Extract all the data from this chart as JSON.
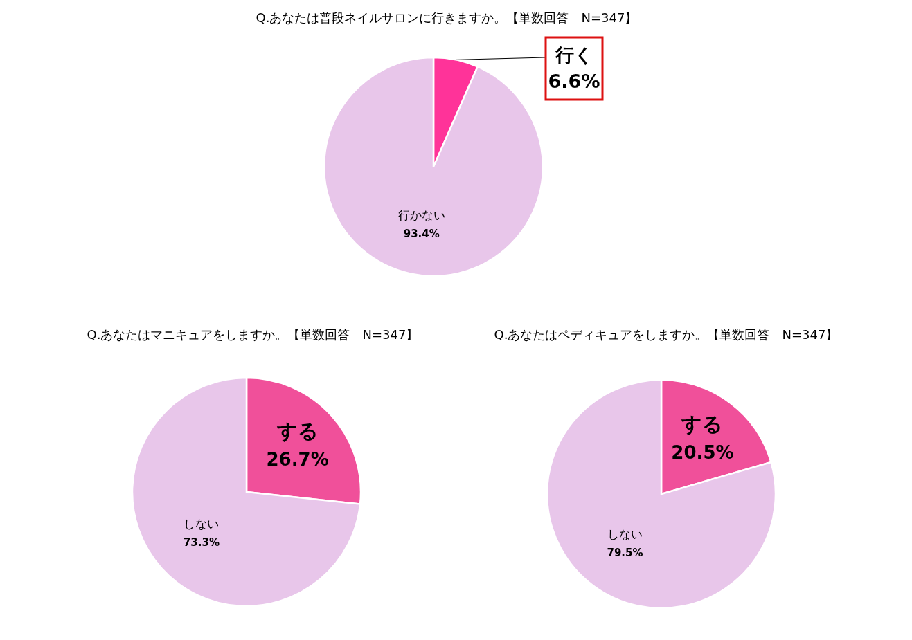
{
  "chart_data": [
    {
      "type": "pie",
      "title": "Q.あなたは普段ネイルサロンに行きますか。【単数回答　N=347】",
      "categories": [
        "行く",
        "行かない"
      ],
      "values": [
        6.6,
        93.4
      ],
      "colors": [
        "#ff3399",
        "#e8c6ea"
      ],
      "value_labels": [
        "6.6%",
        "93.4%"
      ]
    },
    {
      "type": "pie",
      "title": "Q.あなたはマニキュアをしますか。【単数回答　N=347】",
      "categories": [
        "する",
        "しない"
      ],
      "values": [
        26.7,
        73.3
      ],
      "colors": [
        "#f0509a",
        "#e8c6ea"
      ],
      "value_labels": [
        "26.7%",
        "73.3%"
      ]
    },
    {
      "type": "pie",
      "title": "Q.あなたはペディキュアをしますか。【単数回答　N=347】",
      "categories": [
        "する",
        "しない"
      ],
      "values": [
        20.5,
        79.5
      ],
      "colors": [
        "#f0509a",
        "#e8c6ea"
      ],
      "value_labels": [
        "20.5%",
        "79.5%"
      ]
    }
  ]
}
